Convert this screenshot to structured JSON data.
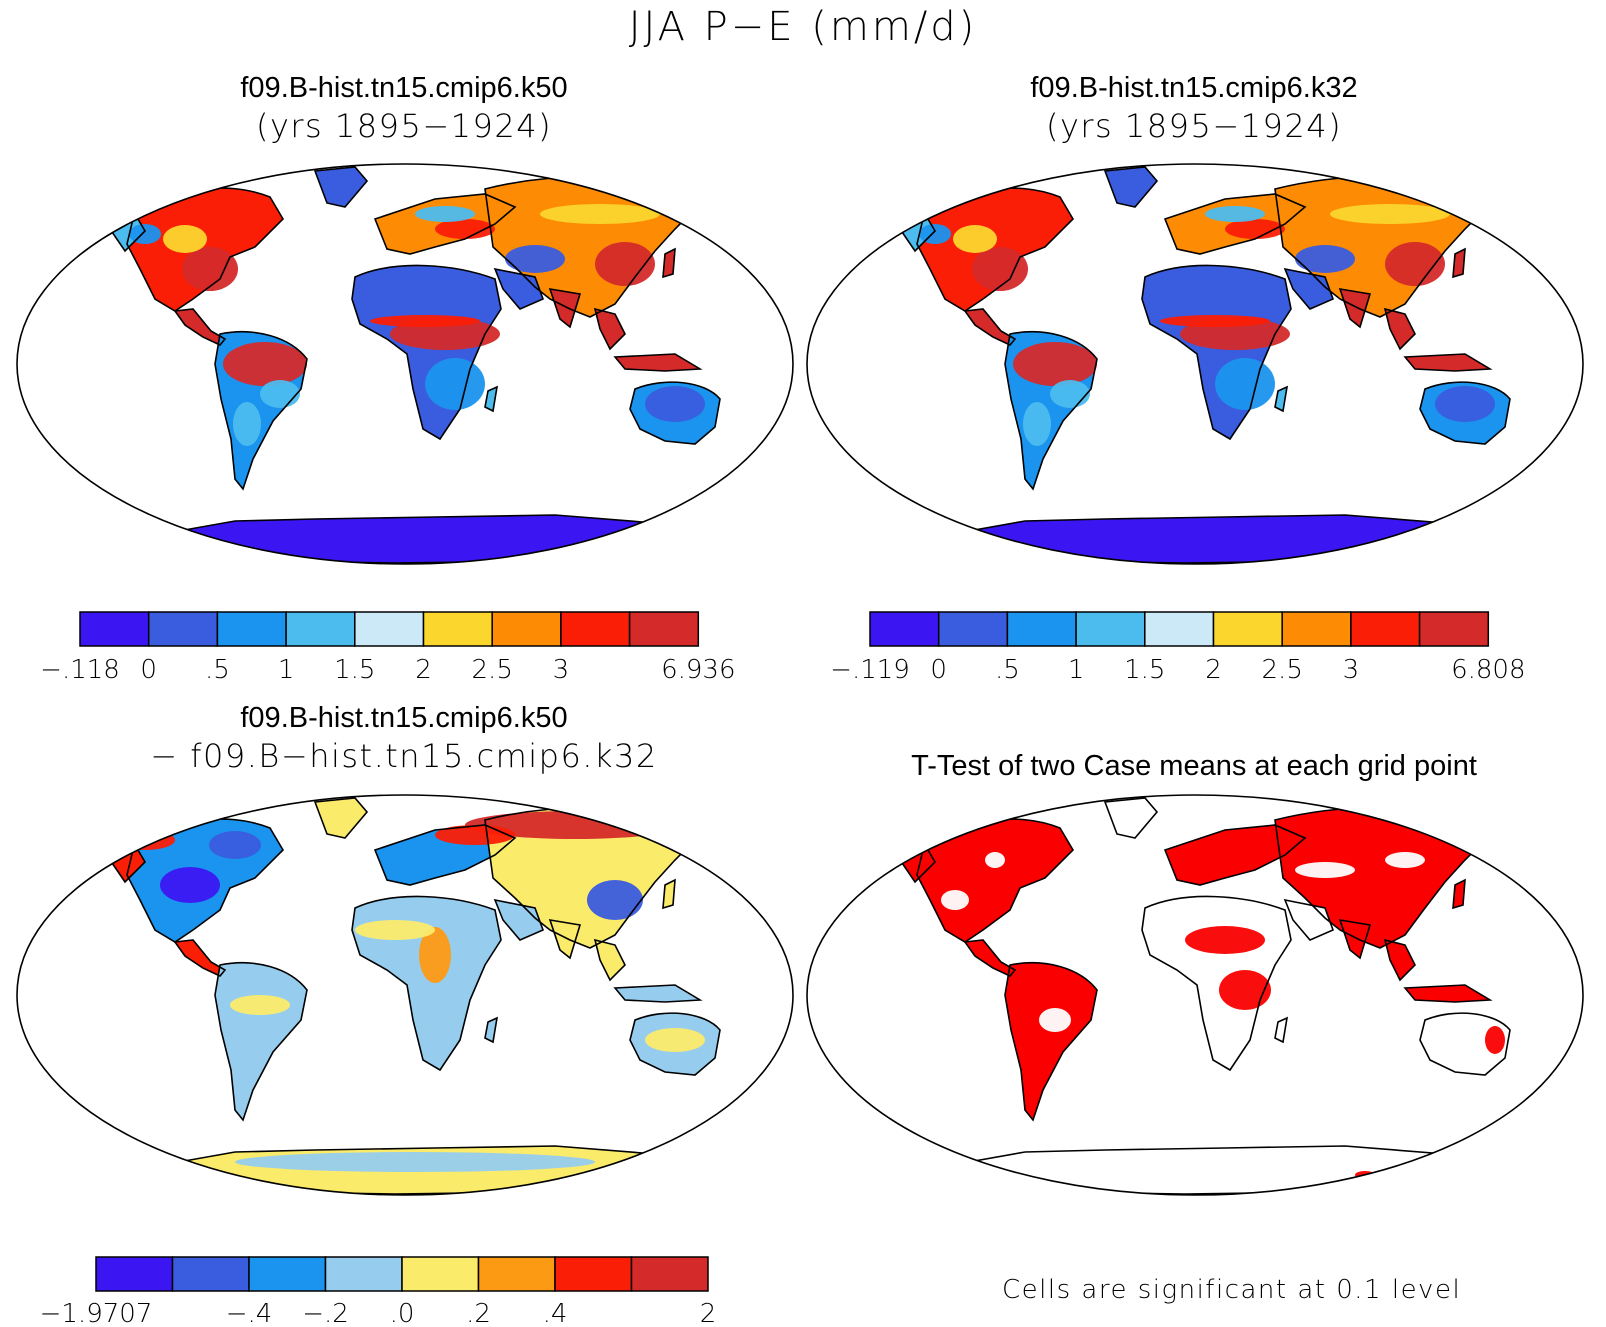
{
  "figure": {
    "title": "JJA P−E (mm/d)"
  },
  "panels": [
    {
      "title_line1": "f09.B-hist.tn15.cmip6.k50",
      "title_line2": "(yrs 1895−1924)",
      "colorbar": {
        "colors": [
          "#3c16f2",
          "#3a5cde",
          "#1a94ee",
          "#4cbcee",
          "#cce9f7",
          "#fbd62d",
          "#fd8c04",
          "#fb1e06",
          "#d42a2a"
        ],
        "labels": [
          "−.118",
          "0",
          ".5",
          "1",
          "1.5",
          "2",
          "2.5",
          "3",
          "",
          "6.936"
        ]
      }
    },
    {
      "title_line1": "f09.B-hist.tn15.cmip6.k32",
      "title_line2": "(yrs 1895−1924)",
      "colorbar": {
        "colors": [
          "#3c16f2",
          "#3a5cde",
          "#1a94ee",
          "#4cbcee",
          "#cce9f7",
          "#fbd62d",
          "#fd8c04",
          "#fb1e06",
          "#d42a2a"
        ],
        "labels": [
          "−.119",
          "0",
          ".5",
          "1",
          "1.5",
          "2",
          "2.5",
          "3",
          "",
          "6.808"
        ]
      }
    },
    {
      "title_line1": "f09.B-hist.tn15.cmip6.k50",
      "title_line2": "− f09.B−hist.tn15.cmip6.k32",
      "colorbar": {
        "colors": [
          "#3c16f2",
          "#3a5cde",
          "#1a94ee",
          "#96cdee",
          "#fbeb6b",
          "#fd9a14",
          "#fb1e06",
          "#d42a2a"
        ],
        "labels": [
          "−1.9707",
          "",
          "−.4",
          "−.2",
          ".0",
          ".2",
          ".4",
          "",
          "2"
        ]
      }
    },
    {
      "title_line1": "T-Test of two Case means at each grid point",
      "note": "Cells are significant at 0.1 level",
      "significance_color": "#fa0000"
    }
  ],
  "icons": [
    "world-map-robinson",
    "coastline-outline"
  ]
}
